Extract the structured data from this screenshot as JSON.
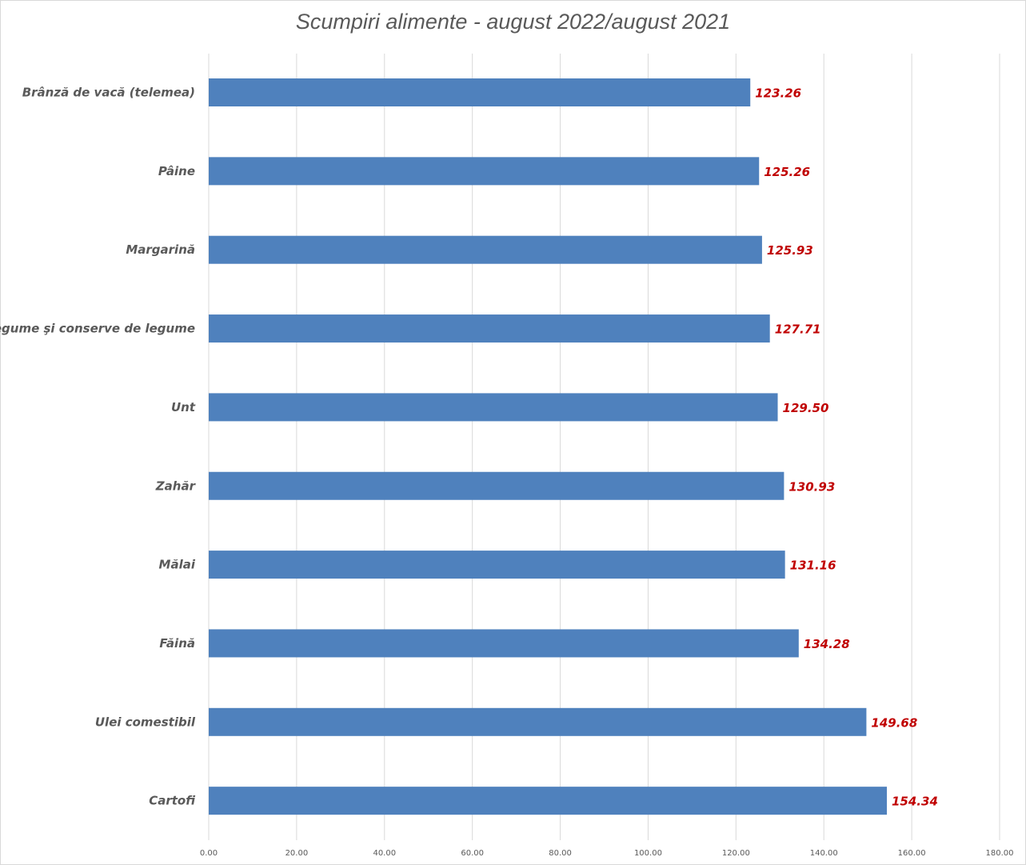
{
  "chart_data": {
    "type": "bar",
    "orientation": "horizontal",
    "title": "Scumpiri alimente - august 2022/august 2021",
    "categories": [
      "Brânză de vacă (telemea)",
      "Pâine",
      "Margarină",
      "Legume şi conserve de legume",
      "Unt",
      "Zahăr",
      "Mălai",
      "Făină",
      "Ulei comestibil",
      "Cartofi"
    ],
    "values": [
      123.26,
      125.26,
      125.93,
      127.71,
      129.5,
      130.93,
      131.16,
      134.28,
      149.68,
      154.34
    ],
    "value_labels": [
      "123.26",
      "125.26",
      "125.93",
      "127.71",
      "129.50",
      "130.93",
      "131.16",
      "134.28",
      "149.68",
      "154.34"
    ],
    "xlim": [
      0,
      180
    ],
    "x_ticks": [
      "0.00",
      "20.00",
      "40.00",
      "60.00",
      "80.00",
      "100.00",
      "120.00",
      "140.00",
      "160.00",
      "180.00"
    ],
    "grid": true,
    "xlabel": "",
    "ylabel": "",
    "colors": {
      "bar": "#4f81bd",
      "value_label": "#c00000",
      "grid": "#d9d9d9"
    }
  }
}
